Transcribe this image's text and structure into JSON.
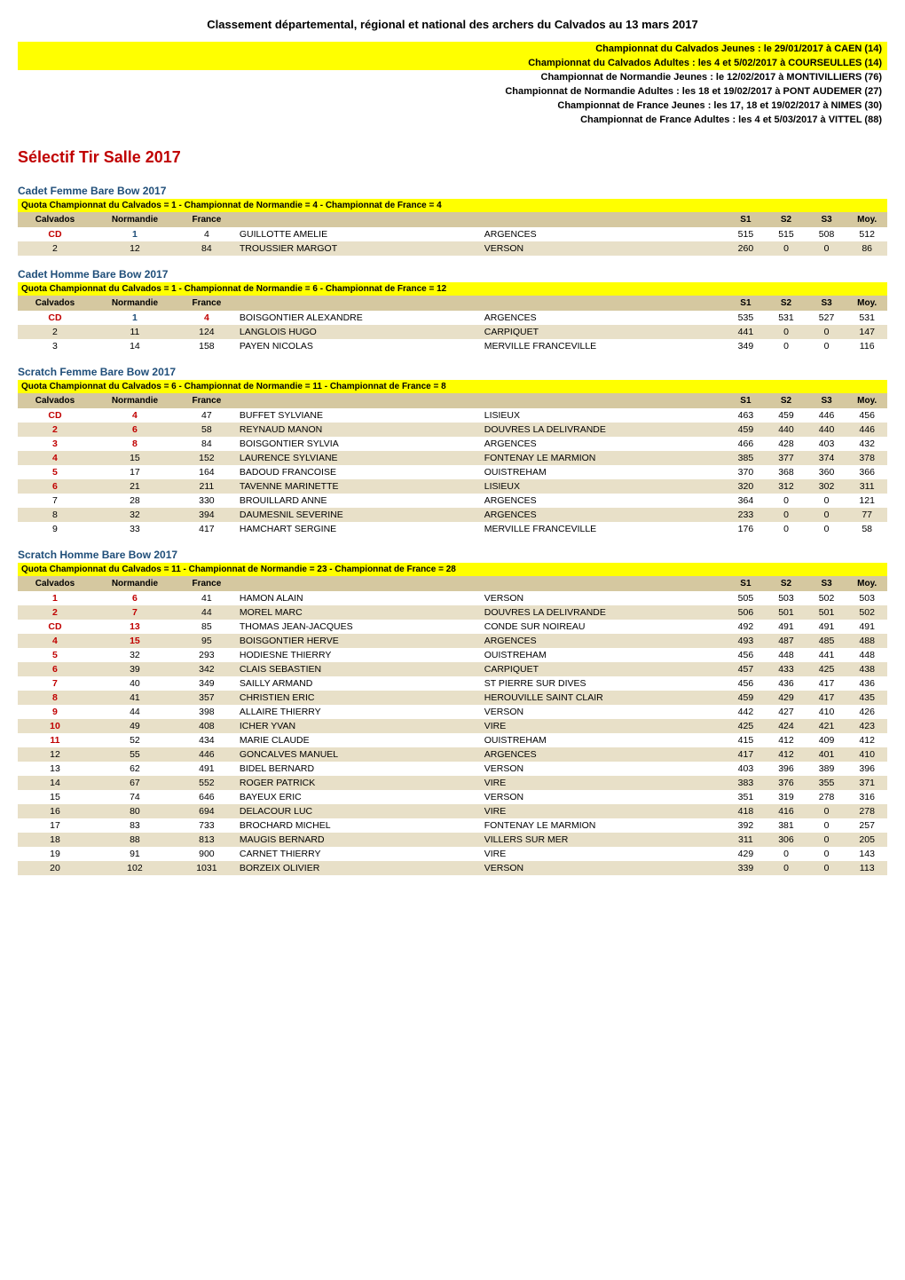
{
  "main_title": "Classement départemental, régional et national des archers du Calvados au 13 mars 2017",
  "events": [
    {
      "text": "Championnat du Calvados Jeunes : le 29/01/2017 à CAEN (14)",
      "yellow": true
    },
    {
      "text": "Championnat du Calvados Adultes : les 4 et 5/02/2017 à COURSEULLES (14)",
      "yellow": true
    },
    {
      "text": "Championnat de Normandie Jeunes : le 12/02/2017 à MONTIVILLIERS (76)",
      "yellow": false
    },
    {
      "text": "Championnat de Normandie Adultes : les 18 et 19/02/2017 à PONT AUDEMER (27)",
      "yellow": false
    },
    {
      "text": "Championnat de France Jeunes : les 17, 18 et 19/02/2017 à NIMES (30)",
      "yellow": false
    },
    {
      "text": "Championnat de France Adultes : les 4 et 5/03/2017 à VITTEL (88)",
      "yellow": false
    }
  ],
  "section_title": "Sélectif Tir Salle 2017",
  "headers": {
    "calvados": "Calvados",
    "normandie": "Normandie",
    "france": "France",
    "s1": "S1",
    "s2": "S2",
    "s3": "S3",
    "moy": "Moy."
  },
  "categories": [
    {
      "title": "Cadet Femme Bare Bow 2017",
      "quota": "Quota Championnat du Calvados = 1 - Championnat de Normandie = 4 - Championnat de France = 4",
      "rows": [
        {
          "calvados": "CD",
          "cal_red": true,
          "normandie": "1",
          "norm_color": "blue",
          "france": "4",
          "fr_color": "",
          "name": "GUILLOTTE AMELIE",
          "club": "ARGENCES",
          "s1": "515",
          "s2": "515",
          "s3": "508",
          "moy": "512"
        },
        {
          "calvados": "2",
          "cal_red": false,
          "normandie": "12",
          "norm_color": "",
          "france": "84",
          "fr_color": "",
          "name": "TROUSSIER MARGOT",
          "club": "VERSON",
          "s1": "260",
          "s2": "0",
          "s3": "0",
          "moy": "86"
        }
      ]
    },
    {
      "title": "Cadet Homme Bare Bow 2017",
      "quota": "Quota Championnat du Calvados = 1 - Championnat de Normandie = 6 - Championnat de France = 12",
      "rows": [
        {
          "calvados": "CD",
          "cal_red": true,
          "normandie": "1",
          "norm_color": "blue",
          "france": "4",
          "fr_color": "red",
          "name": "BOISGONTIER ALEXANDRE",
          "club": "ARGENCES",
          "s1": "535",
          "s2": "531",
          "s3": "527",
          "moy": "531"
        },
        {
          "calvados": "2",
          "cal_red": false,
          "normandie": "11",
          "norm_color": "",
          "france": "124",
          "fr_color": "",
          "name": "LANGLOIS HUGO",
          "club": "CARPIQUET",
          "s1": "441",
          "s2": "0",
          "s3": "0",
          "moy": "147"
        },
        {
          "calvados": "3",
          "cal_red": false,
          "normandie": "14",
          "norm_color": "",
          "france": "158",
          "fr_color": "",
          "name": "PAYEN NICOLAS",
          "club": "MERVILLE FRANCEVILLE",
          "s1": "349",
          "s2": "0",
          "s3": "0",
          "moy": "116"
        }
      ]
    },
    {
      "title": "Scratch Femme Bare Bow 2017",
      "quota": "Quota Championnat du Calvados = 6 - Championnat de Normandie = 11 - Championnat de France = 8",
      "rows": [
        {
          "calvados": "CD",
          "cal_red": true,
          "normandie": "4",
          "norm_color": "red",
          "france": "47",
          "fr_color": "",
          "name": "BUFFET SYLVIANE",
          "club": "LISIEUX",
          "s1": "463",
          "s2": "459",
          "s3": "446",
          "moy": "456"
        },
        {
          "calvados": "2",
          "cal_red": true,
          "normandie": "6",
          "norm_color": "red",
          "france": "58",
          "fr_color": "",
          "name": "REYNAUD MANON",
          "club": "DOUVRES LA DELIVRANDE",
          "s1": "459",
          "s2": "440",
          "s3": "440",
          "moy": "446"
        },
        {
          "calvados": "3",
          "cal_red": true,
          "normandie": "8",
          "norm_color": "red",
          "france": "84",
          "fr_color": "",
          "name": "BOISGONTIER SYLVIA",
          "club": "ARGENCES",
          "s1": "466",
          "s2": "428",
          "s3": "403",
          "moy": "432"
        },
        {
          "calvados": "4",
          "cal_red": true,
          "normandie": "15",
          "norm_color": "",
          "france": "152",
          "fr_color": "",
          "name": "LAURENCE SYLVIANE",
          "club": "FONTENAY LE MARMION",
          "s1": "385",
          "s2": "377",
          "s3": "374",
          "moy": "378"
        },
        {
          "calvados": "5",
          "cal_red": true,
          "normandie": "17",
          "norm_color": "",
          "france": "164",
          "fr_color": "",
          "name": "BADOUD FRANCOISE",
          "club": "OUISTREHAM",
          "s1": "370",
          "s2": "368",
          "s3": "360",
          "moy": "366"
        },
        {
          "calvados": "6",
          "cal_red": true,
          "normandie": "21",
          "norm_color": "",
          "france": "211",
          "fr_color": "",
          "name": "TAVENNE MARINETTE",
          "club": "LISIEUX",
          "s1": "320",
          "s2": "312",
          "s3": "302",
          "moy": "311"
        },
        {
          "calvados": "7",
          "cal_red": false,
          "normandie": "28",
          "norm_color": "",
          "france": "330",
          "fr_color": "",
          "name": "BROUILLARD ANNE",
          "club": "ARGENCES",
          "s1": "364",
          "s2": "0",
          "s3": "0",
          "moy": "121"
        },
        {
          "calvados": "8",
          "cal_red": false,
          "normandie": "32",
          "norm_color": "",
          "france": "394",
          "fr_color": "",
          "name": "DAUMESNIL SEVERINE",
          "club": "ARGENCES",
          "s1": "233",
          "s2": "0",
          "s3": "0",
          "moy": "77"
        },
        {
          "calvados": "9",
          "cal_red": false,
          "normandie": "33",
          "norm_color": "",
          "france": "417",
          "fr_color": "",
          "name": "HAMCHART SERGINE",
          "club": "MERVILLE FRANCEVILLE",
          "s1": "176",
          "s2": "0",
          "s3": "0",
          "moy": "58"
        }
      ]
    },
    {
      "title": "Scratch Homme Bare Bow 2017",
      "quota": "Quota Championnat du Calvados = 11 - Championnat de Normandie = 23 - Championnat de France = 28",
      "rows": [
        {
          "calvados": "1",
          "cal_red": true,
          "normandie": "6",
          "norm_color": "red",
          "france": "41",
          "fr_color": "",
          "name": "HAMON ALAIN",
          "club": "VERSON",
          "s1": "505",
          "s2": "503",
          "s3": "502",
          "moy": "503"
        },
        {
          "calvados": "2",
          "cal_red": true,
          "normandie": "7",
          "norm_color": "red",
          "france": "44",
          "fr_color": "",
          "name": "MOREL MARC",
          "club": "DOUVRES LA DELIVRANDE",
          "s1": "506",
          "s2": "501",
          "s3": "501",
          "moy": "502"
        },
        {
          "calvados": "CD",
          "cal_red": true,
          "normandie": "13",
          "norm_color": "red",
          "france": "85",
          "fr_color": "",
          "name": "THOMAS JEAN-JACQUES",
          "club": "CONDE SUR NOIREAU",
          "s1": "492",
          "s2": "491",
          "s3": "491",
          "moy": "491"
        },
        {
          "calvados": "4",
          "cal_red": true,
          "normandie": "15",
          "norm_color": "red",
          "france": "95",
          "fr_color": "",
          "name": "BOISGONTIER HERVE",
          "club": "ARGENCES",
          "s1": "493",
          "s2": "487",
          "s3": "485",
          "moy": "488"
        },
        {
          "calvados": "5",
          "cal_red": true,
          "normandie": "32",
          "norm_color": "",
          "france": "293",
          "fr_color": "",
          "name": "HODIESNE THIERRY",
          "club": "OUISTREHAM",
          "s1": "456",
          "s2": "448",
          "s3": "441",
          "moy": "448"
        },
        {
          "calvados": "6",
          "cal_red": true,
          "normandie": "39",
          "norm_color": "",
          "france": "342",
          "fr_color": "",
          "name": "CLAIS SEBASTIEN",
          "club": "CARPIQUET",
          "s1": "457",
          "s2": "433",
          "s3": "425",
          "moy": "438"
        },
        {
          "calvados": "7",
          "cal_red": true,
          "normandie": "40",
          "norm_color": "",
          "france": "349",
          "fr_color": "",
          "name": "SAILLY ARMAND",
          "club": "ST PIERRE SUR DIVES",
          "s1": "456",
          "s2": "436",
          "s3": "417",
          "moy": "436"
        },
        {
          "calvados": "8",
          "cal_red": true,
          "normandie": "41",
          "norm_color": "",
          "france": "357",
          "fr_color": "",
          "name": "CHRISTIEN ERIC",
          "club": "HEROUVILLE SAINT CLAIR",
          "s1": "459",
          "s2": "429",
          "s3": "417",
          "moy": "435"
        },
        {
          "calvados": "9",
          "cal_red": true,
          "normandie": "44",
          "norm_color": "",
          "france": "398",
          "fr_color": "",
          "name": "ALLAIRE THIERRY",
          "club": "VERSON",
          "s1": "442",
          "s2": "427",
          "s3": "410",
          "moy": "426"
        },
        {
          "calvados": "10",
          "cal_red": true,
          "normandie": "49",
          "norm_color": "",
          "france": "408",
          "fr_color": "",
          "name": "ICHER YVAN",
          "club": "VIRE",
          "s1": "425",
          "s2": "424",
          "s3": "421",
          "moy": "423"
        },
        {
          "calvados": "11",
          "cal_red": true,
          "normandie": "52",
          "norm_color": "",
          "france": "434",
          "fr_color": "",
          "name": "MARIE CLAUDE",
          "club": "OUISTREHAM",
          "s1": "415",
          "s2": "412",
          "s3": "409",
          "moy": "412"
        },
        {
          "calvados": "12",
          "cal_red": false,
          "normandie": "55",
          "norm_color": "",
          "france": "446",
          "fr_color": "",
          "name": "GONCALVES MANUEL",
          "club": "ARGENCES",
          "s1": "417",
          "s2": "412",
          "s3": "401",
          "moy": "410"
        },
        {
          "calvados": "13",
          "cal_red": false,
          "normandie": "62",
          "norm_color": "",
          "france": "491",
          "fr_color": "",
          "name": "BIDEL BERNARD",
          "club": "VERSON",
          "s1": "403",
          "s2": "396",
          "s3": "389",
          "moy": "396"
        },
        {
          "calvados": "14",
          "cal_red": false,
          "normandie": "67",
          "norm_color": "",
          "france": "552",
          "fr_color": "",
          "name": "ROGER PATRICK",
          "club": "VIRE",
          "s1": "383",
          "s2": "376",
          "s3": "355",
          "moy": "371"
        },
        {
          "calvados": "15",
          "cal_red": false,
          "normandie": "74",
          "norm_color": "",
          "france": "646",
          "fr_color": "",
          "name": "BAYEUX ERIC",
          "club": "VERSON",
          "s1": "351",
          "s2": "319",
          "s3": "278",
          "moy": "316"
        },
        {
          "calvados": "16",
          "cal_red": false,
          "normandie": "80",
          "norm_color": "",
          "france": "694",
          "fr_color": "",
          "name": "DELACOUR LUC",
          "club": "VIRE",
          "s1": "418",
          "s2": "416",
          "s3": "0",
          "moy": "278"
        },
        {
          "calvados": "17",
          "cal_red": false,
          "normandie": "83",
          "norm_color": "",
          "france": "733",
          "fr_color": "",
          "name": "BROCHARD MICHEL",
          "club": "FONTENAY LE MARMION",
          "s1": "392",
          "s2": "381",
          "s3": "0",
          "moy": "257"
        },
        {
          "calvados": "18",
          "cal_red": false,
          "normandie": "88",
          "norm_color": "",
          "france": "813",
          "fr_color": "",
          "name": "MAUGIS BERNARD",
          "club": "VILLERS SUR MER",
          "s1": "311",
          "s2": "306",
          "s3": "0",
          "moy": "205"
        },
        {
          "calvados": "19",
          "cal_red": false,
          "normandie": "91",
          "norm_color": "",
          "france": "900",
          "fr_color": "",
          "name": "CARNET THIERRY",
          "club": "VIRE",
          "s1": "429",
          "s2": "0",
          "s3": "0",
          "moy": "143"
        },
        {
          "calvados": "20",
          "cal_red": false,
          "normandie": "102",
          "norm_color": "",
          "france": "1031",
          "fr_color": "",
          "name": "BORZEIX OLIVIER",
          "club": "VERSON",
          "s1": "339",
          "s2": "0",
          "s3": "0",
          "moy": "113"
        }
      ]
    }
  ]
}
